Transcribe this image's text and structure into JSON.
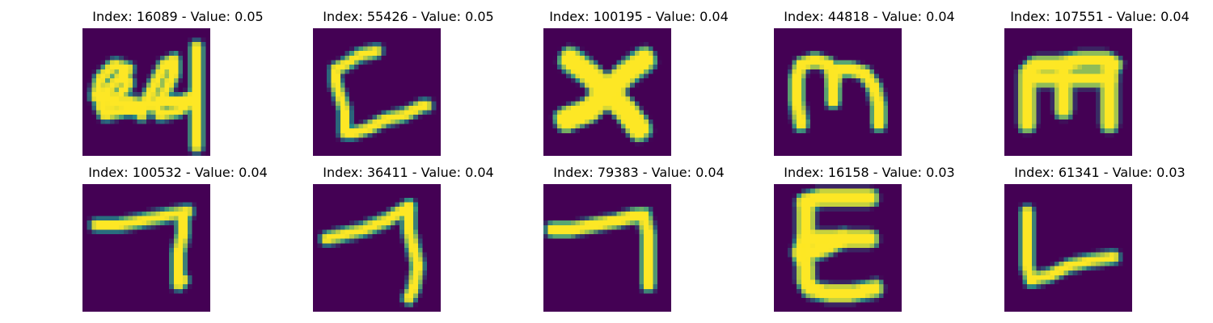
{
  "figure": {
    "panels": [
      {
        "index": "16089",
        "value": "0.05",
        "title": "Index: 16089 - Value: 0.05",
        "glyph": "24-tick"
      },
      {
        "index": "55426",
        "value": "0.05",
        "title": "Index: 55426 - Value: 0.05",
        "glyph": "L-open"
      },
      {
        "index": "100195",
        "value": "0.04",
        "title": "Index: 100195 - Value: 0.04",
        "glyph": "X"
      },
      {
        "index": "44818",
        "value": "0.04",
        "title": "Index: 44818 - Value: 0.04",
        "glyph": "m"
      },
      {
        "index": "107551",
        "value": "0.04",
        "title": "Index: 107551 - Value: 0.04",
        "glyph": "m-bold"
      },
      {
        "index": "100532",
        "value": "0.04",
        "title": "Index: 100532 - Value: 0.04",
        "glyph": "7-bar"
      },
      {
        "index": "36411",
        "value": "0.04",
        "title": "Index: 36411 - Value: 0.04",
        "glyph": "7-curve"
      },
      {
        "index": "79383",
        "value": "0.04",
        "title": "Index: 79383 - Value: 0.04",
        "glyph": "7-flat"
      },
      {
        "index": "16158",
        "value": "0.03",
        "title": "Index: 16158 - Value: 0.03",
        "glyph": "E"
      },
      {
        "index": "61341",
        "value": "0.03",
        "title": "Index: 61341 - Value: 0.03",
        "glyph": "L"
      }
    ],
    "colors": {
      "background": "#440154",
      "stroke": "#fde725",
      "edge": "#21918c"
    }
  }
}
